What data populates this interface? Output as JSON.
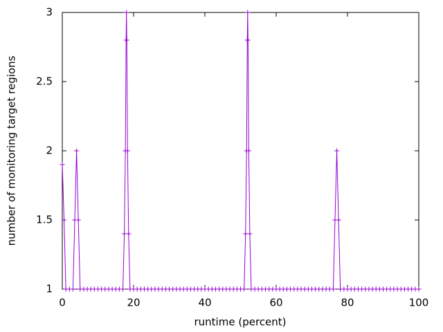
{
  "chart_data": {
    "type": "line",
    "xlabel": "runtime (percent)",
    "ylabel": "number of monitoring target regions",
    "color": "#9400d3",
    "marker": "+",
    "xlim": [
      0,
      100
    ],
    "xticks": [
      0,
      20,
      40,
      60,
      80,
      100
    ],
    "ylim": [
      1,
      3
    ],
    "yticks": [
      1,
      1.5,
      2,
      2.5,
      3
    ],
    "x": [
      0,
      0.5,
      1,
      2,
      3,
      3.5,
      4,
      4.5,
      5,
      6,
      7,
      8,
      9,
      10,
      11,
      12,
      13,
      14,
      15,
      16,
      17,
      17.4,
      17.7,
      17.9,
      18,
      18.1,
      18.3,
      18.6,
      19,
      20,
      21,
      22,
      23,
      24,
      25,
      26,
      27,
      28,
      29,
      30,
      31,
      32,
      33,
      34,
      35,
      36,
      37,
      38,
      39,
      40,
      41,
      42,
      43,
      44,
      45,
      46,
      47,
      48,
      49,
      50,
      51,
      51.4,
      51.7,
      51.9,
      52,
      52.1,
      52.3,
      52.6,
      53,
      54,
      55,
      56,
      57,
      58,
      59,
      60,
      61,
      62,
      63,
      64,
      65,
      66,
      67,
      68,
      69,
      70,
      71,
      72,
      73,
      74,
      75,
      76,
      76.5,
      77,
      77.5,
      78,
      79,
      80,
      81,
      82,
      83,
      84,
      85,
      86,
      87,
      88,
      89,
      90,
      91,
      92,
      93,
      94,
      95,
      96,
      97,
      98,
      99,
      100
    ],
    "values": [
      1.9,
      1.5,
      1,
      1,
      1,
      1.5,
      2,
      1.5,
      1,
      1,
      1,
      1,
      1,
      1,
      1,
      1,
      1,
      1,
      1,
      1,
      1,
      1.4,
      2.0,
      2.8,
      3,
      2.8,
      2.0,
      1.4,
      1,
      1,
      1,
      1,
      1,
      1,
      1,
      1,
      1,
      1,
      1,
      1,
      1,
      1,
      1,
      1,
      1,
      1,
      1,
      1,
      1,
      1,
      1,
      1,
      1,
      1,
      1,
      1,
      1,
      1,
      1,
      1,
      1,
      1.4,
      2.0,
      2.8,
      3,
      2.8,
      2.0,
      1.4,
      1,
      1,
      1,
      1,
      1,
      1,
      1,
      1,
      1,
      1,
      1,
      1,
      1,
      1,
      1,
      1,
      1,
      1,
      1,
      1,
      1,
      1,
      1,
      1,
      1.5,
      2,
      1.5,
      1,
      1,
      1,
      1,
      1,
      1,
      1,
      1,
      1,
      1,
      1,
      1,
      1,
      1,
      1,
      1,
      1,
      1,
      1,
      1,
      1,
      1,
      1
    ]
  }
}
